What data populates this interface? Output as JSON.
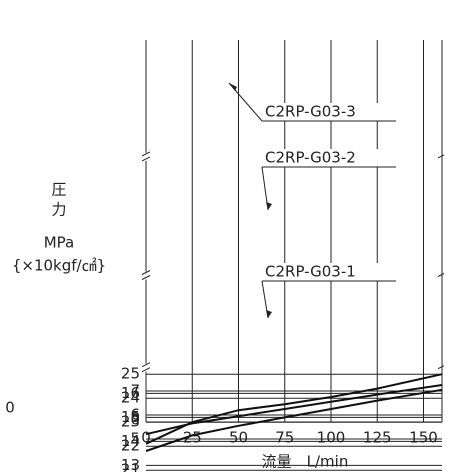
{
  "chart_data": {
    "type": "line",
    "y_label_lines": [
      "圧",
      "力",
      "MPa",
      "{×10kgf/㎠}"
    ],
    "x_label": "流量　L/min",
    "side_label": "0",
    "xlim": [
      0,
      160
    ],
    "xticks": [
      0,
      25,
      50,
      75,
      100,
      125,
      150
    ],
    "y_segments": [
      {
        "ylim": [
          20.4,
          25
        ],
        "yticks": [
          21,
          22,
          23,
          24,
          25
        ]
      },
      {
        "ylim": [
          12.4,
          16.8
        ],
        "yticks": [
          13,
          14,
          15,
          16
        ]
      },
      {
        "ylim": [
          4.4,
          7.7
        ],
        "yticks": [
          5,
          6,
          7
        ]
      }
    ],
    "base_ytick": 0,
    "grid": true,
    "x": [
      0,
      25,
      50,
      75,
      100,
      125,
      160
    ],
    "series": [
      {
        "name": "C2RP-G03-3",
        "color": "#111111",
        "values": [
          22.1,
          23.0,
          23.5,
          23.75,
          24.05,
          24.4,
          25.0
        ]
      },
      {
        "name": "C2RP-G03-2",
        "color": "#111111",
        "values": [
          13.6,
          14.25,
          14.65,
          15.0,
          15.35,
          15.7,
          16.15
        ]
      },
      {
        "name": "C2RP-G03-1",
        "color": "#111111",
        "values": [
          5.2,
          5.65,
          5.95,
          6.25,
          6.55,
          6.85,
          7.25
        ]
      }
    ]
  }
}
